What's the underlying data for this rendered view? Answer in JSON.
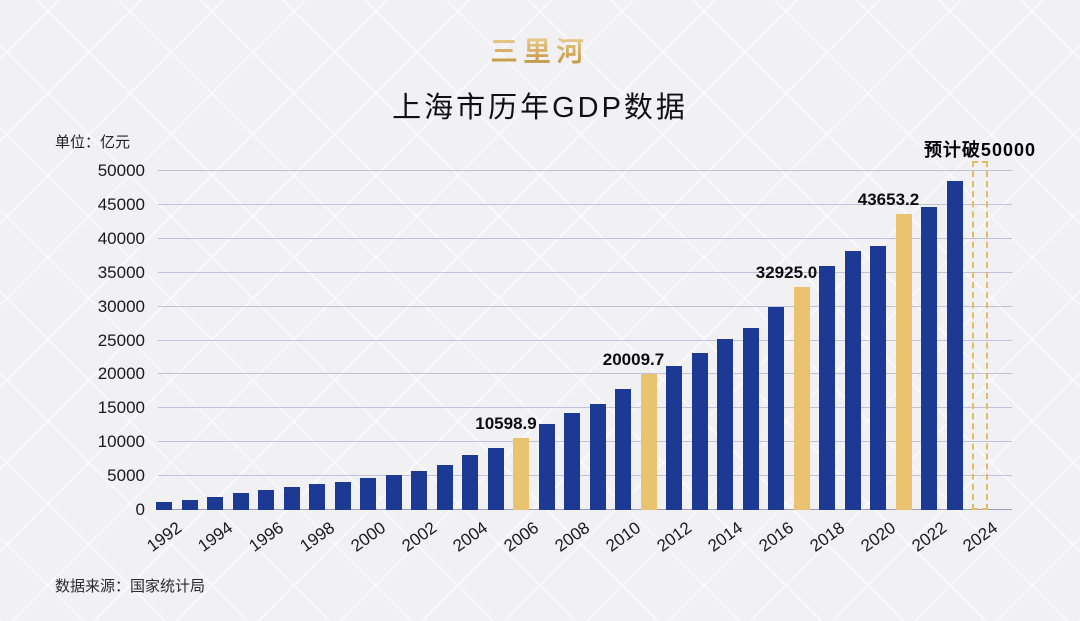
{
  "page": {
    "brand": "三里河",
    "title": "上海市历年GDP数据",
    "unit_label": "单位：亿元",
    "source": "数据来源：国家统计局"
  },
  "chart_data": {
    "type": "bar",
    "title": "上海市历年GDP数据",
    "unit": "亿元",
    "ylim": [
      0,
      50000
    ],
    "ytick_step": 5000,
    "grid": true,
    "legend": "none",
    "xtick_labels": [
      "1992",
      "1994",
      "1996",
      "1998",
      "2000",
      "2002",
      "2004",
      "2006",
      "2008",
      "2010",
      "2012",
      "2014",
      "2016",
      "2018",
      "2020",
      "2022",
      "2024"
    ],
    "bars": [
      {
        "year": 1992,
        "value": 1114.3
      },
      {
        "year": 1993,
        "value": 1519.2
      },
      {
        "year": 1994,
        "value": 1990.9
      },
      {
        "year": 1995,
        "value": 2499.4
      },
      {
        "year": 1996,
        "value": 2957.6
      },
      {
        "year": 1997,
        "value": 3438.8
      },
      {
        "year": 1998,
        "value": 3801.1
      },
      {
        "year": 1999,
        "value": 4188.7
      },
      {
        "year": 2000,
        "value": 4771.2
      },
      {
        "year": 2001,
        "value": 5210.1
      },
      {
        "year": 2002,
        "value": 5741.0
      },
      {
        "year": 2003,
        "value": 6694.2
      },
      {
        "year": 2004,
        "value": 8072.8
      },
      {
        "year": 2005,
        "value": 9164.1
      },
      {
        "year": 2006,
        "value": 10598.9,
        "highlight": true,
        "label": "10598.9"
      },
      {
        "year": 2007,
        "value": 12668.1
      },
      {
        "year": 2008,
        "value": 14275.0
      },
      {
        "year": 2009,
        "value": 15572.2
      },
      {
        "year": 2010,
        "value": 17915.4
      },
      {
        "year": 2011,
        "value": 20009.7,
        "highlight": true,
        "label": "20009.7"
      },
      {
        "year": 2012,
        "value": 21253.5
      },
      {
        "year": 2013,
        "value": 23204.1
      },
      {
        "year": 2014,
        "value": 25269.8
      },
      {
        "year": 2015,
        "value": 26887.0
      },
      {
        "year": 2016,
        "value": 29887.0
      },
      {
        "year": 2017,
        "value": 32925.0,
        "highlight": true,
        "label": "32925.0"
      },
      {
        "year": 2018,
        "value": 36011.8
      },
      {
        "year": 2019,
        "value": 38155.3
      },
      {
        "year": 2020,
        "value": 38963.3
      },
      {
        "year": 2021,
        "value": 43653.2,
        "highlight": true,
        "label": "43653.2"
      },
      {
        "year": 2022,
        "value": 44652.8
      },
      {
        "year": 2023,
        "value": 48500.0
      }
    ],
    "forecast_bar": {
      "year": 2024,
      "value": 50900,
      "label": "预计破50000",
      "style": "dashed-outline"
    },
    "colors": {
      "bar": "#1c3a93",
      "highlight": "#e9c36f",
      "forecast_outline": "#e3bc66",
      "grid": "#c3c1d8",
      "baseline": "#9d9bb5",
      "background": "#f1f0f3",
      "title_text": "#111111",
      "brand_gold": "#c79b4e"
    }
  }
}
